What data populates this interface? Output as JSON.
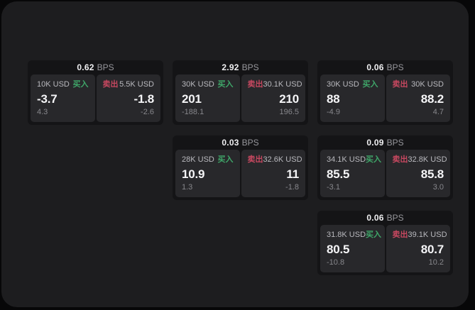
{
  "colors": {
    "page_bg": "#070708",
    "panel_bg": "#1d1d1f",
    "card_bg": "#141416",
    "tile_bg": "#28282b",
    "buy_green": "#3fa669",
    "sell_red": "#c74860",
    "value_text": "#f5f5f7",
    "amount_text": "#b9b9be",
    "delta_text": "#87878c",
    "bps_value_text": "#efeff1",
    "bps_unit_text": "#97979c"
  },
  "labels": {
    "bps_suffix": "BPS",
    "buy": "买入",
    "sell": "卖出"
  },
  "cards": [
    {
      "bps": "0.62",
      "buy": {
        "amount": "10K USD",
        "value": "-3.7",
        "delta": "4.3"
      },
      "sell": {
        "amount": "5.5K USD",
        "value": "-1.8",
        "delta": "-2.6"
      }
    },
    {
      "bps": "2.92",
      "buy": {
        "amount": "30K USD",
        "value": "201",
        "delta": "-188.1"
      },
      "sell": {
        "amount": "30.1K USD",
        "value": "210",
        "delta": "196.5"
      }
    },
    {
      "bps": "0.06",
      "buy": {
        "amount": "30K USD",
        "value": "88",
        "delta": "-4.9"
      },
      "sell": {
        "amount": "30K USD",
        "value": "88.2",
        "delta": "4.7"
      }
    },
    {
      "bps": "0.03",
      "buy": {
        "amount": "28K USD",
        "value": "10.9",
        "delta": "1.3"
      },
      "sell": {
        "amount": "32.6K USD",
        "value": "11",
        "delta": "-1.8"
      }
    },
    {
      "bps": "0.09",
      "buy": {
        "amount": "34.1K USD",
        "value": "85.5",
        "delta": "-3.1"
      },
      "sell": {
        "amount": "32.8K USD",
        "value": "85.8",
        "delta": "3.0"
      }
    },
    {
      "bps": "0.06",
      "buy": {
        "amount": "31.8K USD",
        "value": "80.5",
        "delta": "-10.8"
      },
      "sell": {
        "amount": "39.1K USD",
        "value": "80.7",
        "delta": "10.2"
      }
    }
  ]
}
